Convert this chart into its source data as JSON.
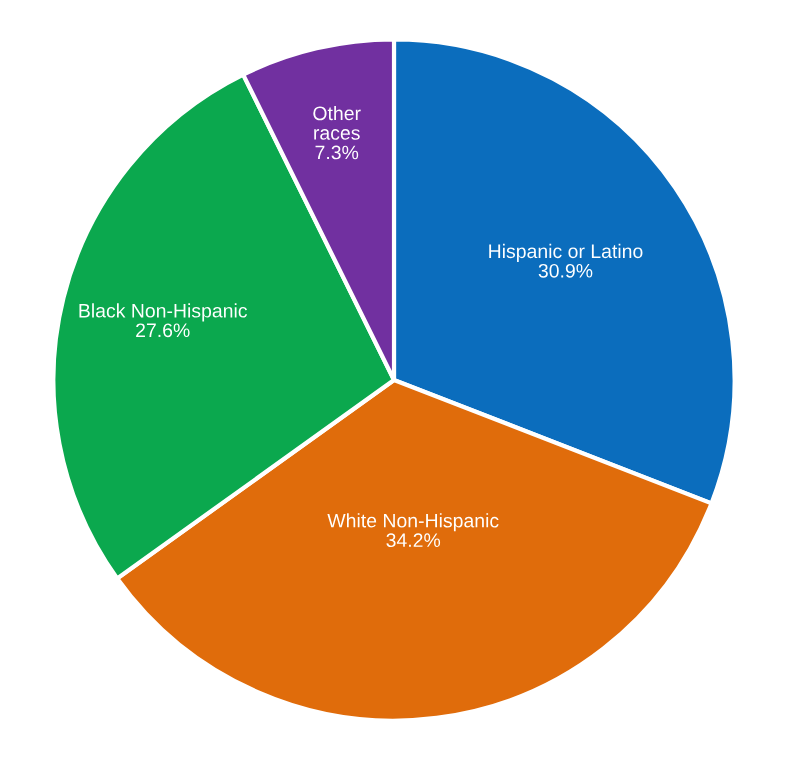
{
  "chart_data": {
    "type": "pie",
    "categories": [
      "Hispanic or Latino",
      "White Non-Hispanic",
      "Black Non-Hispanic",
      "Other\nraces"
    ],
    "values": [
      30.9,
      34.2,
      27.6,
      7.3
    ],
    "colors": [
      "#0b6dbd",
      "#e06c0b",
      "#0ba84e",
      "#7130a0"
    ],
    "value_labels": [
      "30.9%",
      "34.2%",
      "27.6%",
      "7.3%"
    ]
  }
}
